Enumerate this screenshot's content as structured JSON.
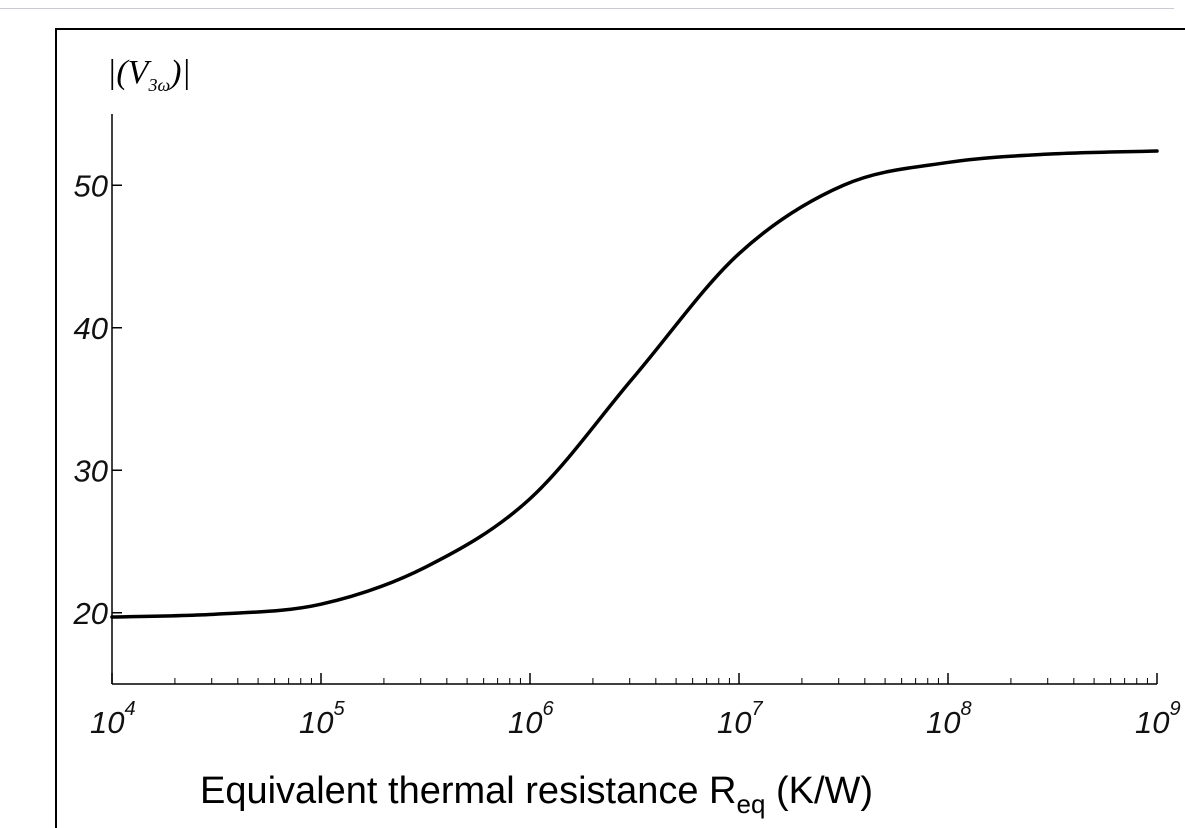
{
  "chart_data": {
    "type": "line",
    "title": "",
    "xlabel": "Equivalent thermal resistance R",
    "xlabel_sub": "eq",
    "xlabel_unit": " (K/W)",
    "ylabel": "|(V",
    "ylabel_sub": "3ω",
    "ylabel_close": ")|",
    "xscale": "log",
    "xlim": [
      10000,
      1000000000
    ],
    "ylim": [
      15,
      55
    ],
    "yticks": [
      20,
      30,
      40,
      50
    ],
    "ytick_labels": [
      "20",
      "30",
      "40",
      "50"
    ],
    "xticks": [
      10000,
      100000,
      1000000,
      10000000,
      100000000,
      1000000000
    ],
    "xtick_labels": [
      {
        "base": "10",
        "exp": "4"
      },
      {
        "base": "10",
        "exp": "5"
      },
      {
        "base": "10",
        "exp": "6"
      },
      {
        "base": "10",
        "exp": "7"
      },
      {
        "base": "10",
        "exp": "8"
      },
      {
        "base": "10",
        "exp": "9"
      }
    ],
    "grid": false,
    "series": [
      {
        "color": "#000000",
        "x": [
          10000,
          31623,
          100000,
          316228,
          1000000,
          3162278,
          10000000,
          31622777,
          100000000,
          316227766,
          1000000000
        ],
        "y": [
          19.7,
          19.9,
          20.6,
          23.2,
          28.0,
          36.6,
          45.2,
          50.0,
          51.6,
          52.2,
          52.4
        ]
      }
    ]
  }
}
